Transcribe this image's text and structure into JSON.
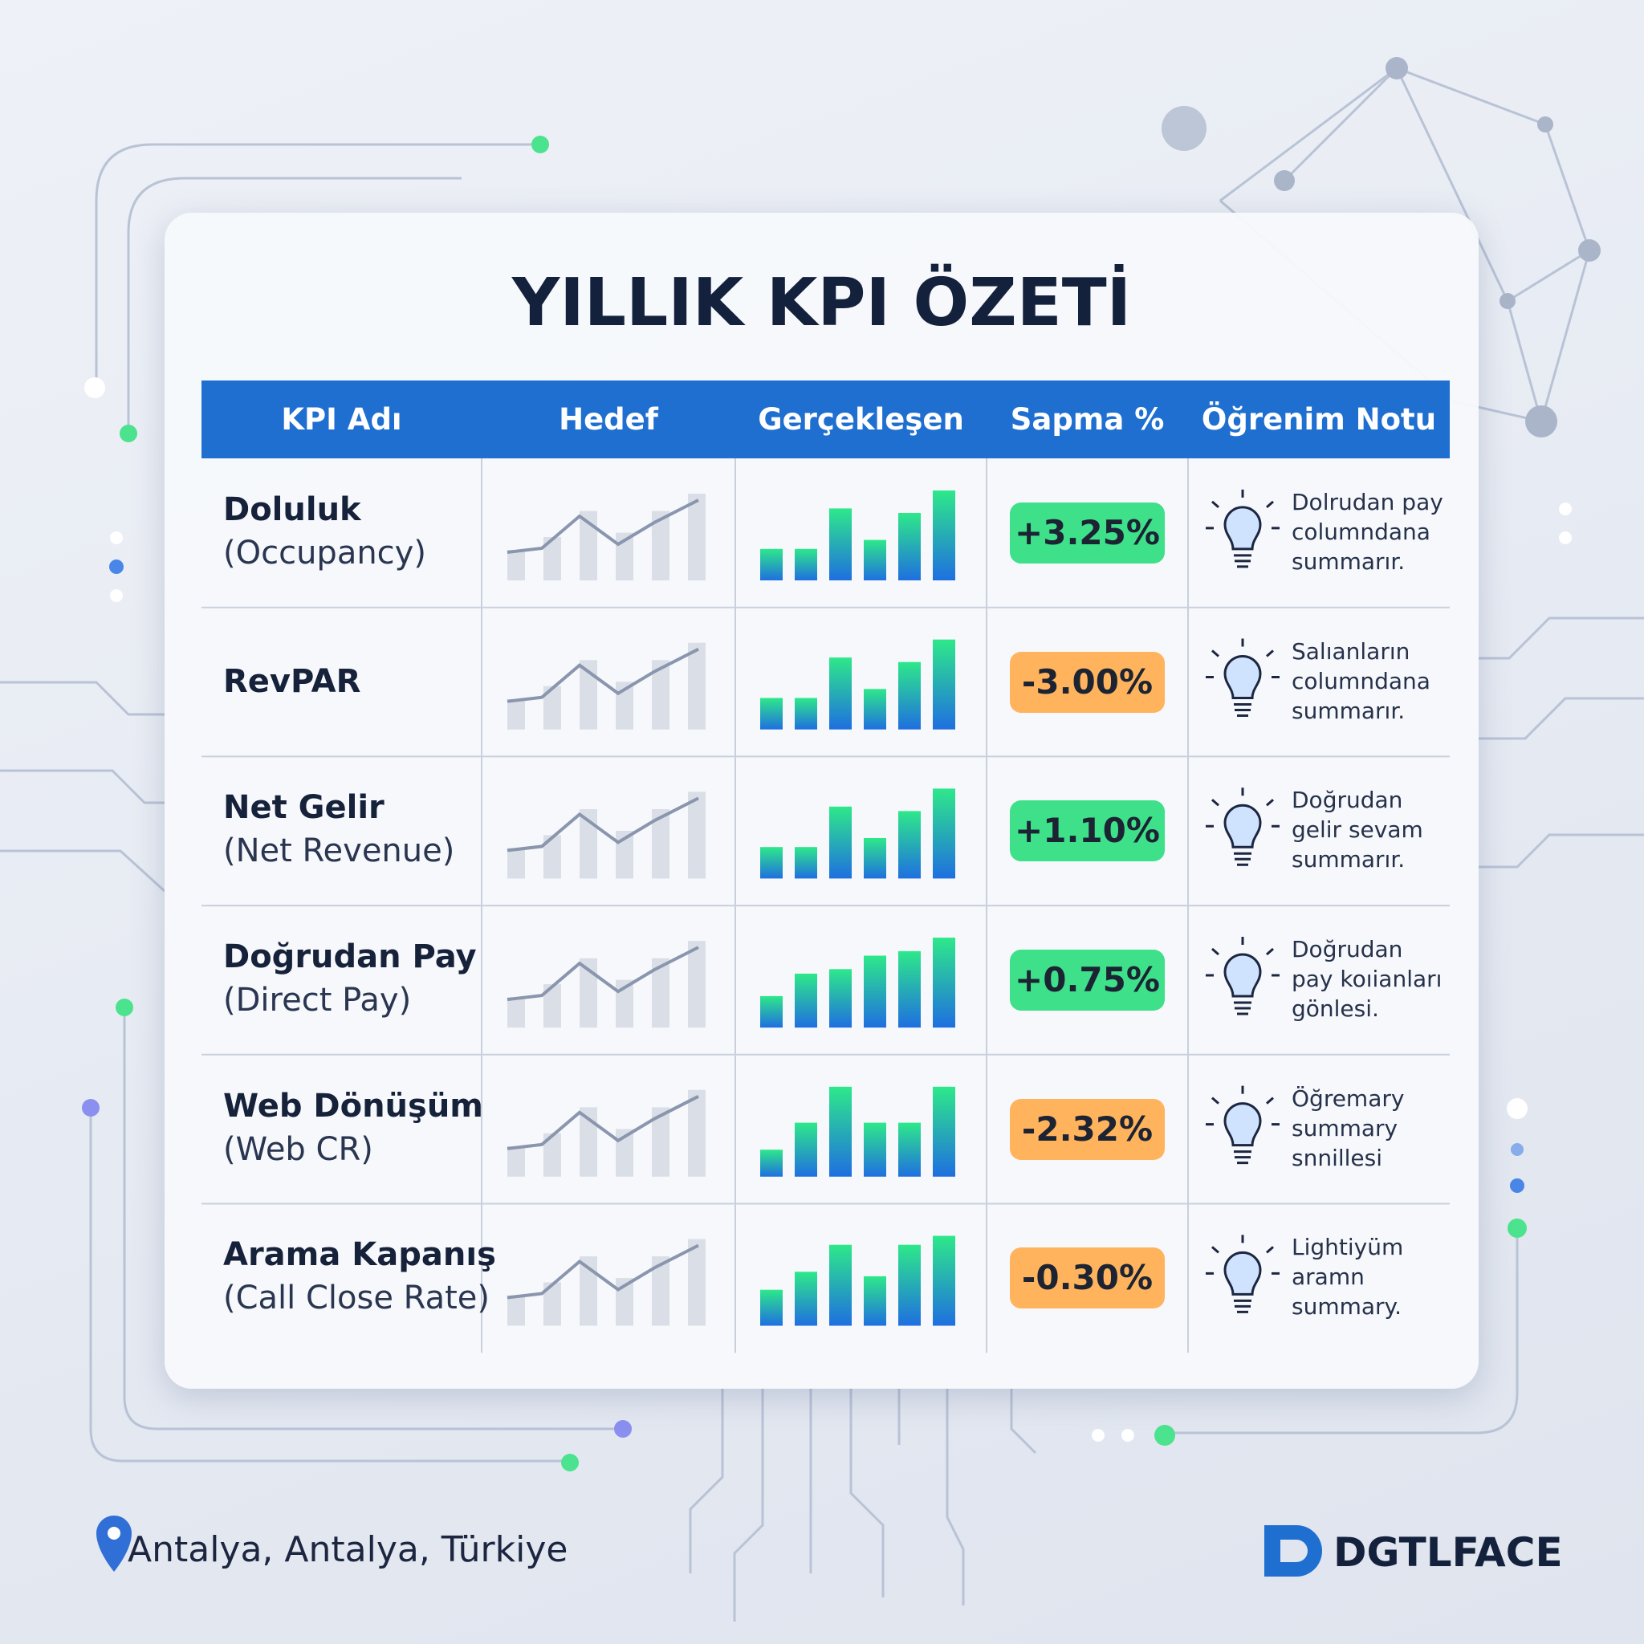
{
  "title": "YILLIK KPI ÖZETİ",
  "table": {
    "headers": [
      "KPI Adı",
      "Hedef",
      "Gerçekleşen",
      "Sapma %",
      "Öğrenim Notu"
    ],
    "rows": [
      {
        "name": "Doluluk",
        "subname": "(Occupancy)",
        "deviation": "+3.25%",
        "color": "#3ee08a",
        "note": [
          "Dolrudan pay",
          "columndana",
          "summarır."
        ]
      },
      {
        "name": "RevPAR",
        "deviation": "-3.00%",
        "color": "#ffb35c",
        "note": [
          "Salıanların",
          "columndana",
          "summarır."
        ]
      },
      {
        "name": "Net Gelir",
        "subname": "(Net Revenue)",
        "deviation": "+1.10%",
        "color": "#3ee08a",
        "note": [
          "Doğrudan",
          "gelir sevam",
          "summarır."
        ]
      },
      {
        "name": "Doğrudan Pay",
        "subname": "(Direct Pay)",
        "deviation": "+0.75%",
        "color": "#3ee08a",
        "note": [
          "Doğrudan",
          "pay koıianları",
          "gönlesi."
        ]
      },
      {
        "name": "Web Dönüşüm",
        "subname": "(Web CR)",
        "deviation": "-2.32%",
        "color": "#ffb35c",
        "note": [
          "Öğremary",
          "summary",
          "snnillesi"
        ]
      },
      {
        "name": "Arama Kapanış",
        "subname": "(Call Close Rate)",
        "deviation": "-0.30%",
        "color": "#ffb35c",
        "note": [
          "Lightiyüm",
          "aramn",
          "summary."
        ]
      }
    ]
  },
  "footer": {
    "location": "Antalya, Antalya, Türkiye",
    "brand": "DGTLFACE"
  }
}
